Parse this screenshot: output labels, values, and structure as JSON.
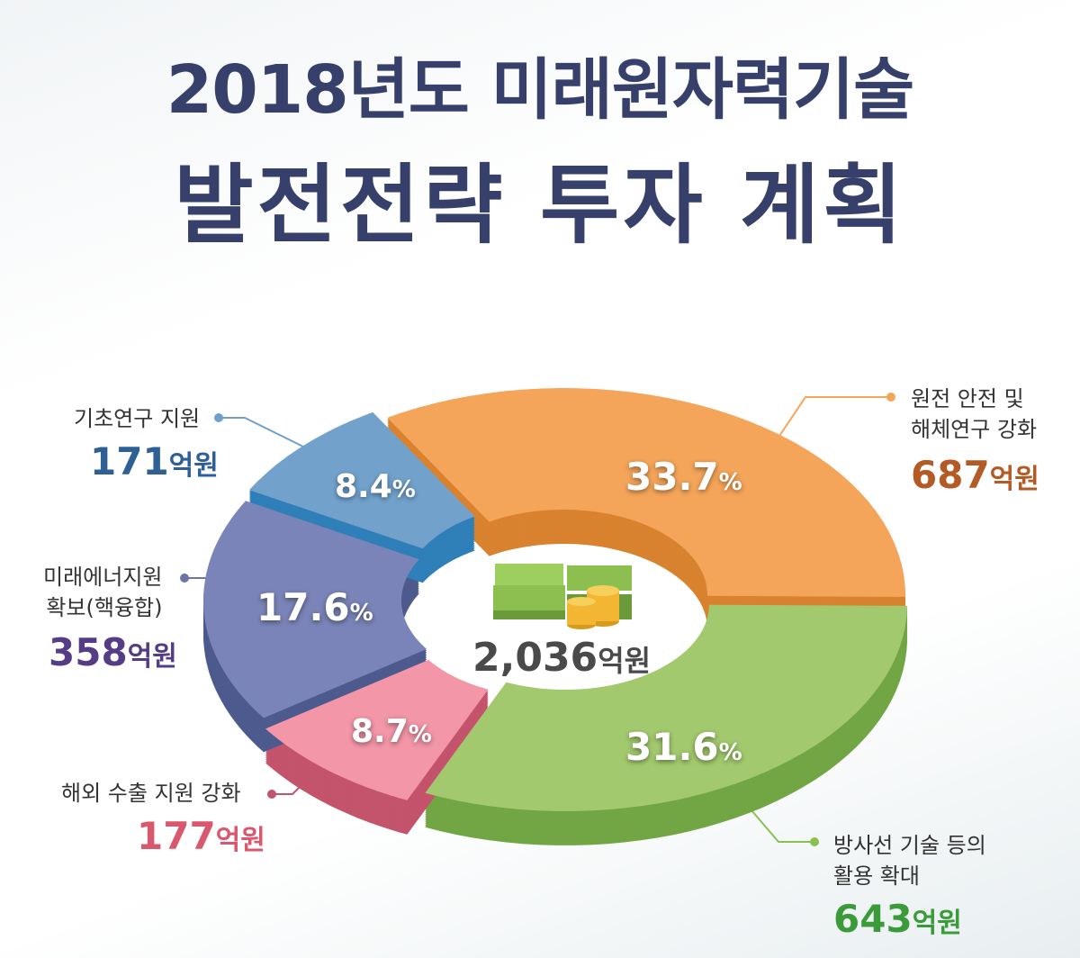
{
  "title_line1": "2018년도 미래원자력기술",
  "title_line2": "발전전략 투자 계획",
  "unit": "억원",
  "percent_sign": "%",
  "chart_data": {
    "type": "pie",
    "style": "3d-donut",
    "center_label": "2,036",
    "total": 2036,
    "slices": [
      {
        "label_line1": "원전 안전 및",
        "label_line2": "해체연구 강화",
        "value": 687,
        "value_text": "687",
        "percent": "33.7",
        "color": "#f5a55a",
        "dark": "#d9822f",
        "text_color": "#b35a25"
      },
      {
        "label_line1": "방사선 기술 등의",
        "label_line2": "활용 확대",
        "value": 643,
        "value_text": "643",
        "percent": "31.6",
        "color": "#a3c96e",
        "dark": "#72a544",
        "text_color": "#3b9a3a"
      },
      {
        "label_line1": "해외 수출 지원 강화",
        "label_line2": "",
        "value": 177,
        "value_text": "177",
        "percent": "8.7",
        "color": "#f296a8",
        "dark": "#c4536c",
        "text_color": "#d9586e"
      },
      {
        "label_line1": "미래에너지원",
        "label_line2": "확보(핵융합)",
        "value": 358,
        "value_text": "358",
        "percent": "17.6",
        "color": "#7b84b8",
        "dark": "#4d5a8e",
        "text_color": "#553d85"
      },
      {
        "label_line1": "기초연구 지원",
        "label_line2": "",
        "value": 171,
        "value_text": "171",
        "percent": "8.4",
        "color": "#72a2cc",
        "dark": "#2f7fb9",
        "text_color": "#2e5f95"
      }
    ]
  }
}
